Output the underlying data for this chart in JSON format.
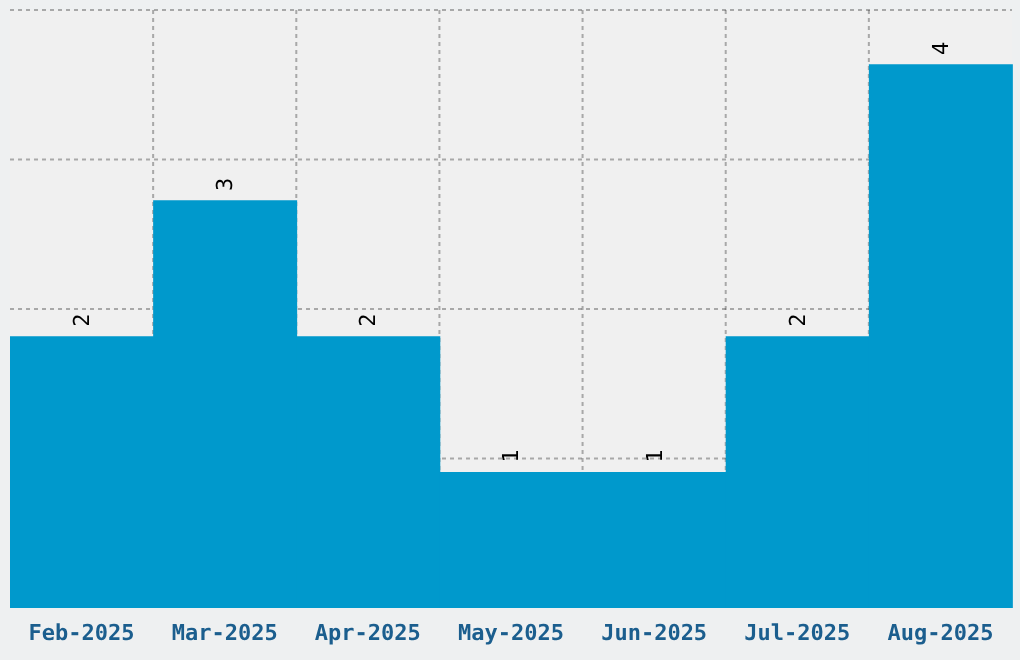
{
  "chart_data": {
    "type": "bar",
    "categories": [
      "Feb-2025",
      "Mar-2025",
      "Apr-2025",
      "May-2025",
      "Jun-2025",
      "Jul-2025",
      "Aug-2025"
    ],
    "values": [
      2,
      3,
      2,
      1,
      1,
      2,
      4
    ],
    "color": "#0099cc",
    "ylim": [
      0,
      4.4
    ],
    "tick_labels": "x",
    "grid": true,
    "data_labels": true
  }
}
